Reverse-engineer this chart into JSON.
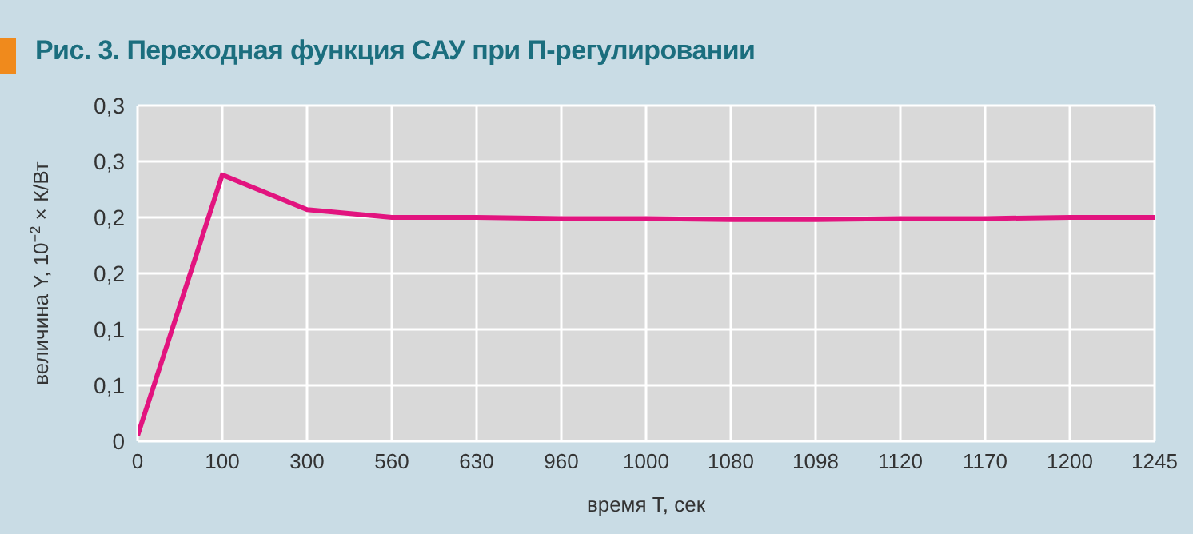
{
  "chart_data": {
    "type": "line",
    "title": "Рис. 3. Переходная функция САУ при П-регулировании",
    "xlabel": "время T, сек",
    "ylabel": "величина Y, 10$^{−2}$ × К/Вт",
    "categories": [
      "0",
      "100",
      "300",
      "560",
      "630",
      "960",
      "1000",
      "1080",
      "1098",
      "1120",
      "1170",
      "1200",
      "1245"
    ],
    "series": [
      {
        "color": "#e2147f",
        "values": [
          0.005,
          0.238,
          0.207,
          0.2,
          0.2,
          0.199,
          0.199,
          0.198,
          0.198,
          0.199,
          0.199,
          0.2,
          0.2
        ]
      }
    ],
    "ylim": [
      0,
      0.3
    ],
    "yticks": [
      0,
      {
        "value": 0.05,
        "label": "0,1"
      },
      {
        "value": 0.1,
        "label": "0,1"
      },
      {
        "value": 0.15,
        "label": "0,2"
      },
      {
        "value": 0.2,
        "label": "0,2"
      },
      {
        "value": 0.25,
        "label": "0,3"
      },
      {
        "value": 0.3,
        "label": "0,3"
      }
    ],
    "grid": true,
    "legend": false,
    "marker": "none",
    "line_style": "solid"
  }
}
